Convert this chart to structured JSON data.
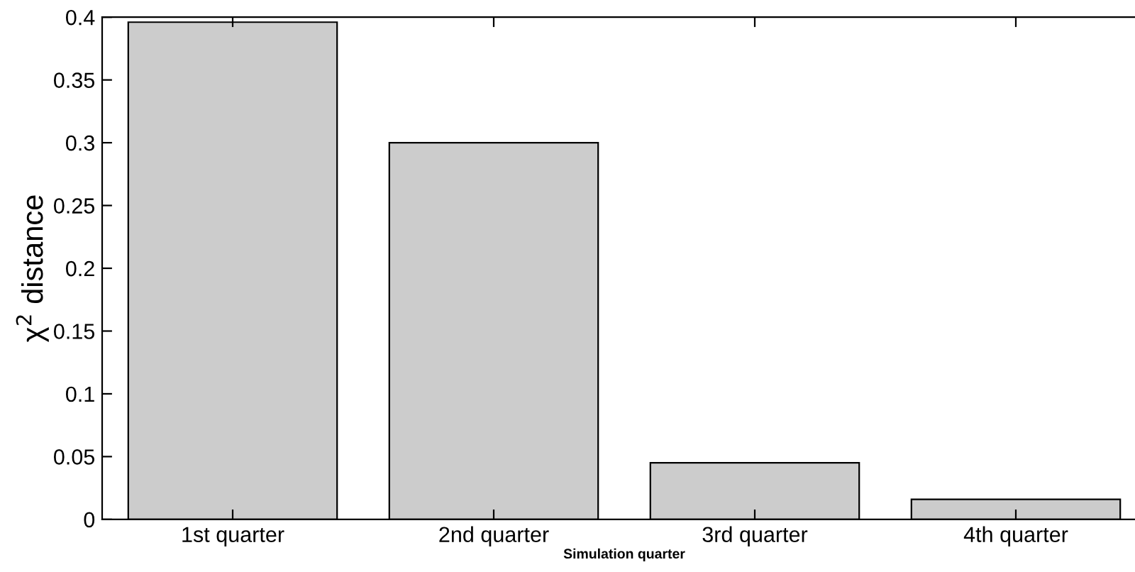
{
  "chart_data": {
    "type": "bar",
    "categories": [
      "1st quarter",
      "2nd quarter",
      "3rd quarter",
      "4th quarter"
    ],
    "values": [
      0.396,
      0.3,
      0.045,
      0.016
    ],
    "color": "#cccccc",
    "xlabel": "Simulation quarter",
    "ylabel": "χ$^{2}$ distance",
    "ylim": [
      0,
      0.4
    ],
    "yticks": [
      0,
      0.05,
      0.1,
      0.15,
      0.2,
      0.25,
      0.3,
      0.35,
      0.4
    ],
    "grid": false
  }
}
